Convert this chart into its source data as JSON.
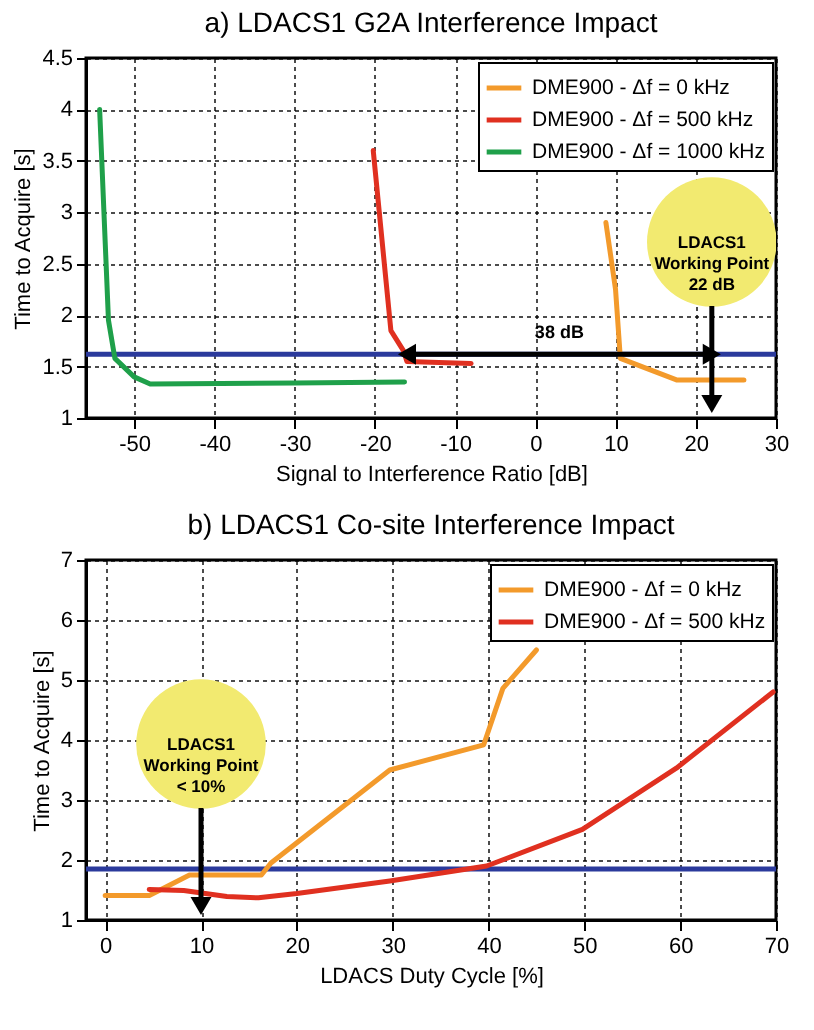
{
  "chart_data": [
    {
      "type": "line",
      "title": "a) LDACS1 G2A Interference Impact",
      "xlabel": "Signal to Interference Ratio [dB]",
      "ylabel": "Time to Acquire [s]",
      "xlim": [
        -56,
        30
      ],
      "xticks": [
        -50,
        -40,
        -30,
        -20,
        -10,
        0,
        10,
        20,
        30
      ],
      "ylim": [
        1,
        4.5
      ],
      "yticks": [
        1,
        1.5,
        2,
        2.5,
        3,
        3.5,
        4,
        4.5
      ],
      "grid": true,
      "legend": "top right",
      "line_style": "solid",
      "series": [
        {
          "name": "DME900 - Δf = 0 kHz",
          "color": "#f39a2b",
          "x": [
            8.8,
            10,
            10.6,
            17.6,
            20,
            26
          ],
          "values": [
            2.9,
            2.25,
            1.58,
            1.37,
            1.37,
            1.37
          ]
        },
        {
          "name": "DME900 - Δf = 500 kHz",
          "color": "#e03020",
          "x": [
            -20.2,
            -18,
            -16.4,
            -16,
            -8
          ],
          "values": [
            3.6,
            1.85,
            1.65,
            1.55,
            1.53
          ]
        },
        {
          "name": "DME900 - Δf = 1000 kHz",
          "color": "#1fa04a",
          "x": [
            -54.3,
            -53.2,
            -52.4,
            -50,
            -48,
            -30,
            -16.3
          ],
          "values": [
            4.0,
            1.95,
            1.58,
            1.4,
            1.33,
            1.34,
            1.35
          ]
        },
        {
          "color": "#000000",
          "x": [
            -16,
            22
          ],
          "values": [
            1.62,
            1.62
          ],
          "marker": "triangle"
        }
      ],
      "ref_lines": [
        {
          "axis": "y",
          "value": 1.62,
          "color": "#2b3a9c"
        },
        {
          "axis": "x",
          "value": 22,
          "label": "LDACS1\nWorking Point\n22 dB",
          "color": "#000000"
        }
      ],
      "annotations": [
        {
          "text": "38 dB",
          "x": 3,
          "y": 1.62
        }
      ]
    },
    {
      "type": "line",
      "title": "b) LDACS1 Co-site Interference Impact",
      "xlabel": "LDACS Duty Cycle [%]",
      "ylabel": "Time to Acquire [s]",
      "xlim": [
        -2,
        70
      ],
      "xticks": [
        0,
        10,
        20,
        30,
        40,
        50,
        60,
        70
      ],
      "ylim": [
        1,
        7
      ],
      "yticks": [
        1,
        2,
        3,
        4,
        5,
        6,
        7
      ],
      "grid": true,
      "legend": "top right",
      "line_style": "solid",
      "series": [
        {
          "name": "DME900 - Δf = 0 kHz",
          "color": "#f39a2b",
          "x": [
            0,
            4.6,
            8.8,
            16.3,
            17.3,
            29.7,
            39.5,
            41.5,
            45
          ],
          "values": [
            1.41,
            1.41,
            1.75,
            1.75,
            1.95,
            3.5,
            3.92,
            4.86,
            5.5
          ]
        },
        {
          "name": "DME900 - Δf = 500 kHz",
          "color": "#e03020",
          "x": [
            4.6,
            8.2,
            12.7,
            16,
            20,
            29.7,
            39.8,
            49.8,
            59.6,
            69.7
          ],
          "values": [
            1.51,
            1.49,
            1.39,
            1.37,
            1.44,
            1.65,
            1.9,
            2.51,
            3.53,
            4.8
          ]
        }
      ],
      "ref_lines": [
        {
          "axis": "y",
          "value": 1.85,
          "color": "#2b3a9c"
        },
        {
          "axis": "x",
          "value": 10,
          "label": "LDACS1\nWorking Point\n< 10%",
          "color": "#000000"
        }
      ]
    }
  ]
}
